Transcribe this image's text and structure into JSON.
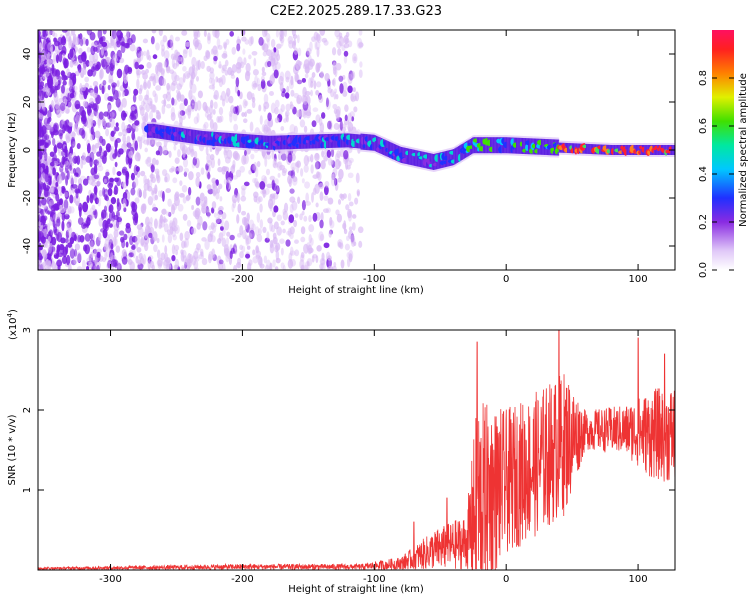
{
  "title": "C2E2.2025.289.17.33.G23",
  "chart_data": [
    {
      "type": "heatmap",
      "name": "spectrogram",
      "xlabel": "Height of straight line (km)",
      "ylabel": "Frequency (Hz)",
      "xlim": [
        -355,
        128
      ],
      "ylim": [
        -50,
        50
      ],
      "xticks": [
        -300,
        -200,
        -100,
        0,
        100
      ],
      "yticks": [
        -40,
        -20,
        0,
        20,
        40
      ],
      "colorbar": {
        "label": "Normalized spectral amplitude",
        "range": [
          0,
          1
        ],
        "ticks": [
          "0.0",
          "0.2",
          "0.4",
          "0.6",
          "0.8"
        ],
        "tick_values": [
          0.0,
          0.2,
          0.4,
          0.6,
          0.8
        ]
      },
      "ridge": {
        "description_points": [
          {
            "x": -268,
            "f": 8
          },
          {
            "x": -230,
            "f": 5
          },
          {
            "x": -180,
            "f": 3
          },
          {
            "x": -120,
            "f": 4
          },
          {
            "x": -100,
            "f": 3
          },
          {
            "x": -80,
            "f": -2
          },
          {
            "x": -55,
            "f": -5
          },
          {
            "x": -40,
            "f": -3
          },
          {
            "x": -25,
            "f": 2
          },
          {
            "x": 0,
            "f": 2
          },
          {
            "x": 40,
            "f": 1
          },
          {
            "x": 80,
            "f": 0
          },
          {
            "x": 128,
            "f": 0
          }
        ]
      }
    },
    {
      "type": "line",
      "name": "snr",
      "xlabel": "Height of straight line (km)",
      "ylabel": "SNR (10 * v/v)",
      "y_multiplier": "(x10",
      "y_multiplier_exp": "4",
      "y_multiplier_close": ")",
      "xlim": [
        -355,
        128
      ],
      "ylim": [
        0,
        3
      ],
      "xticks": [
        -300,
        -200,
        -100,
        0,
        100
      ],
      "yticks": [
        1,
        2,
        3
      ],
      "color": "#ee3333",
      "envelope_points": [
        {
          "x": -355,
          "mean": 0.02,
          "amp": 0.02
        },
        {
          "x": -200,
          "mean": 0.04,
          "amp": 0.05
        },
        {
          "x": -110,
          "mean": 0.04,
          "amp": 0.05
        },
        {
          "x": -80,
          "mean": 0.08,
          "amp": 0.12
        },
        {
          "x": -55,
          "mean": 0.25,
          "amp": 0.35
        },
        {
          "x": -30,
          "mean": 0.35,
          "amp": 0.5
        },
        {
          "x": -22,
          "mean": 0.8,
          "amp": 1.9
        },
        {
          "x": 0,
          "mean": 1.1,
          "amp": 1.3
        },
        {
          "x": 25,
          "mean": 1.35,
          "amp": 1.3
        },
        {
          "x": 45,
          "mean": 1.6,
          "amp": 1.3
        },
        {
          "x": 60,
          "mean": 1.75,
          "amp": 0.35
        },
        {
          "x": 90,
          "mean": 1.75,
          "amp": 0.45
        },
        {
          "x": 110,
          "mean": 1.7,
          "amp": 0.8
        },
        {
          "x": 128,
          "mean": 1.7,
          "amp": 0.9
        }
      ],
      "spikes": [
        {
          "x": -22,
          "y": 2.85
        },
        {
          "x": 40,
          "y": 3.0
        },
        {
          "x": 100,
          "y": 2.9
        },
        {
          "x": 120,
          "y": 2.7
        },
        {
          "x": -45,
          "y": 0.9
        },
        {
          "x": -70,
          "y": 0.6
        }
      ]
    }
  ]
}
